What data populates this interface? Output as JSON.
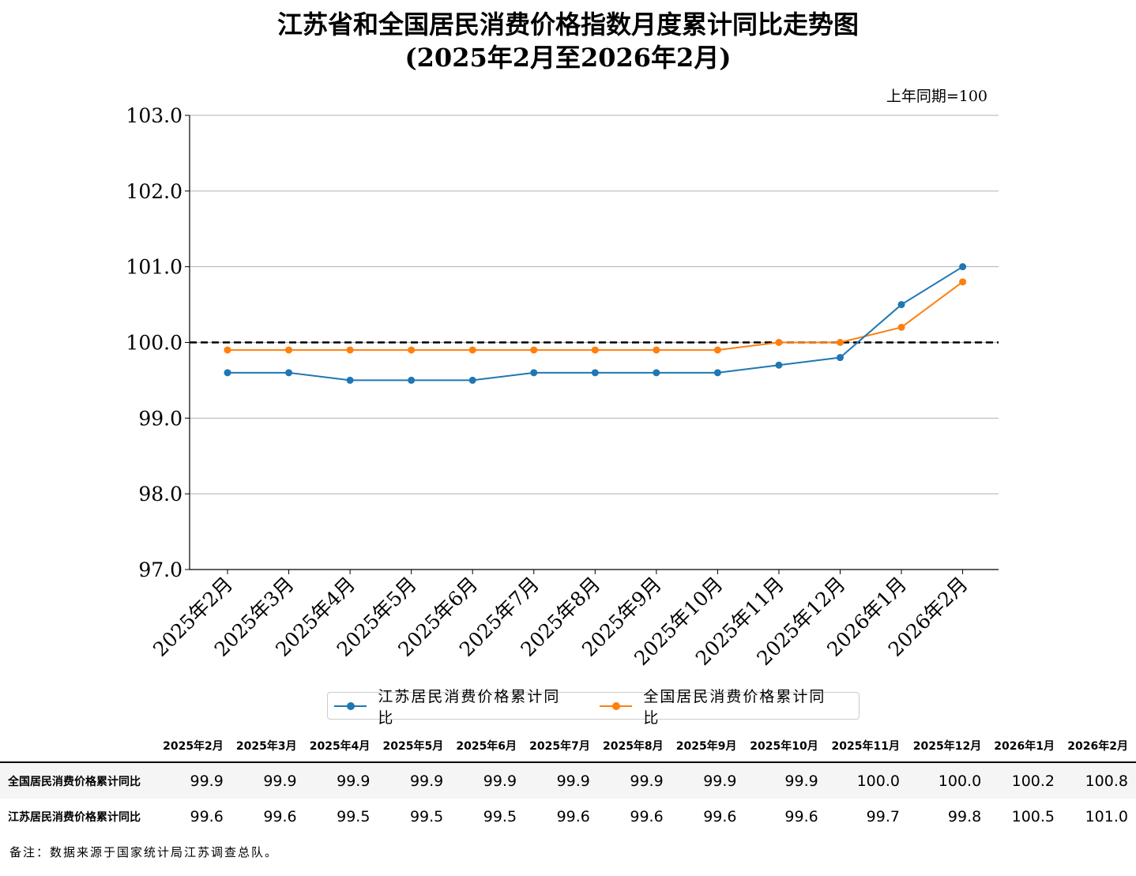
{
  "title_line1": "江苏省和全国居民消费价格指数月度累计同比走势图",
  "title_line2": "(2025年2月至2026年2月)",
  "unit_note": "上年同期=100",
  "colors": {
    "jiangsu": "#1f77b4",
    "national": "#ff7f0e",
    "reference": "#000000",
    "grid": "#b0b0b0"
  },
  "chart_data": {
    "type": "line",
    "categories": [
      "2025年2月",
      "2025年3月",
      "2025年4月",
      "2025年5月",
      "2025年6月",
      "2025年7月",
      "2025年8月",
      "2025年9月",
      "2025年10月",
      "2025年11月",
      "2025年12月",
      "2026年1月",
      "2026年2月"
    ],
    "series": [
      {
        "name": "江苏居民消费价格累计同比",
        "values": [
          99.6,
          99.6,
          99.5,
          99.5,
          99.5,
          99.6,
          99.6,
          99.6,
          99.6,
          99.7,
          99.8,
          100.5,
          101.0
        ]
      },
      {
        "name": "全国居民消费价格累计同比",
        "values": [
          99.9,
          99.9,
          99.9,
          99.9,
          99.9,
          99.9,
          99.9,
          99.9,
          99.9,
          100.0,
          100.0,
          100.2,
          100.8
        ]
      }
    ],
    "ylim": [
      97.0,
      103.0
    ],
    "yticks": [
      "97.0",
      "98.0",
      "99.0",
      "100.0",
      "101.0",
      "102.0",
      "103.0"
    ],
    "reference_line": 100.0,
    "grid": true,
    "legend_position": "bottom"
  },
  "table": {
    "headers": [
      "2025年2月",
      "2025年3月",
      "2025年4月",
      "2025年5月",
      "2025年6月",
      "2025年7月",
      "2025年8月",
      "2025年9月",
      "2025年10月",
      "2025年11月",
      "2025年12月",
      "2026年1月",
      "2026年2月"
    ],
    "rows": [
      {
        "label": "全国居民消费价格累计同比",
        "cells": [
          "99.9",
          "99.9",
          "99.9",
          "99.9",
          "99.9",
          "99.9",
          "99.9",
          "99.9",
          "99.9",
          "100.0",
          "100.0",
          "100.2",
          "100.8"
        ]
      },
      {
        "label": "江苏居民消费价格累计同比",
        "cells": [
          "99.6",
          "99.6",
          "99.5",
          "99.5",
          "99.5",
          "99.6",
          "99.6",
          "99.6",
          "99.6",
          "99.7",
          "99.8",
          "100.5",
          "101.0"
        ]
      }
    ]
  },
  "footnote": "备注：数据来源于国家统计局江苏调查总队。"
}
